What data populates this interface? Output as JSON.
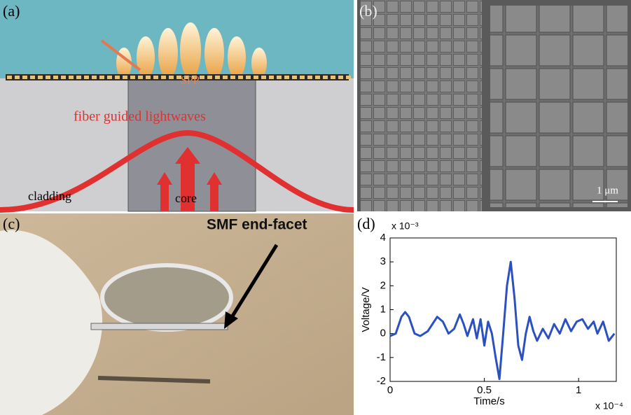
{
  "panels": {
    "a": {
      "label": "(a)",
      "spp": "SPP",
      "lightwaves": "fiber guided lightwaves",
      "cladding": "cladding",
      "core": "core"
    },
    "b": {
      "label": "(b)",
      "scale": "1 μm"
    },
    "c": {
      "label": "(c)",
      "annotation": "SMF end-facet"
    },
    "d": {
      "label": "(d)"
    }
  },
  "chart_data": {
    "type": "line",
    "x_label": "Time/s",
    "y_label": "Voltage/V",
    "x_multiplier": "x 10⁻⁴",
    "y_multiplier": "x 10⁻³",
    "x": [
      0,
      0.03,
      0.06,
      0.08,
      0.1,
      0.13,
      0.16,
      0.2,
      0.25,
      0.28,
      0.31,
      0.34,
      0.37,
      0.39,
      0.41,
      0.44,
      0.46,
      0.48,
      0.5,
      0.52,
      0.54,
      0.56,
      0.58,
      0.6,
      0.62,
      0.64,
      0.66,
      0.68,
      0.7,
      0.72,
      0.74,
      0.76,
      0.78,
      0.81,
      0.84,
      0.87,
      0.9,
      0.93,
      0.96,
      0.99,
      1.02,
      1.05,
      1.08,
      1.1,
      1.13,
      1.16,
      1.19
    ],
    "series": [
      {
        "color": "#2b50c0",
        "values": [
          -0.1,
          0,
          0.7,
          0.9,
          0.7,
          0,
          -0.1,
          0.1,
          0.7,
          0.5,
          0,
          0.2,
          0.8,
          0.4,
          -0.1,
          0.6,
          -0.2,
          0.6,
          -0.5,
          0.5,
          0,
          -1,
          -1.9,
          0,
          2,
          3,
          1.5,
          -0.5,
          -1.1,
          0,
          0.7,
          0.1,
          -0.3,
          0.2,
          -0.2,
          0.4,
          0,
          0.6,
          0.1,
          0.5,
          0.6,
          0.2,
          0.5,
          0,
          0.5,
          -0.3,
          0
        ]
      }
    ],
    "xlim": [
      0,
      1.2
    ],
    "xticks": [
      0,
      0.5,
      1
    ],
    "ylim": [
      -2,
      4
    ],
    "yticks": [
      -2,
      -1,
      0,
      1,
      2,
      3,
      4
    ]
  }
}
